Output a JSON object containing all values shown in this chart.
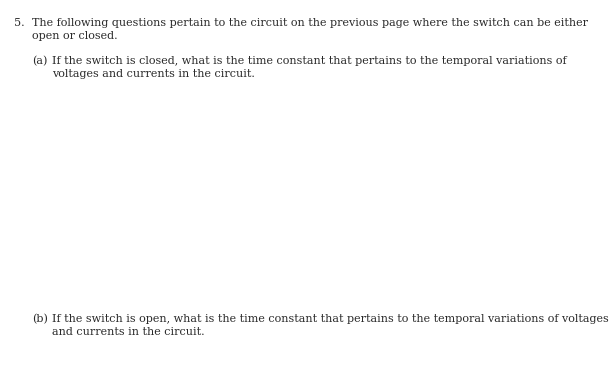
{
  "background_color": "#ffffff",
  "text_color": "#2a2a2a",
  "question_number": "5.",
  "main_text_line1": "The following questions pertain to the circuit on the previous page where the switch can be either",
  "main_text_line2": "open or closed.",
  "part_a_label": "(a)",
  "part_a_text_line1": "If the switch is closed, what is the time constant that pertains to the temporal variations of",
  "part_a_text_line2": "voltages and currents in the circuit.",
  "part_b_label": "(b)",
  "part_b_text_line1": "If the switch is open, what is the time constant that pertains to the temporal variations of voltages",
  "part_b_text_line2": "and currents in the circuit.",
  "fig_width": 6.11,
  "fig_height": 3.9,
  "dpi": 100,
  "fontsize": 8.0
}
